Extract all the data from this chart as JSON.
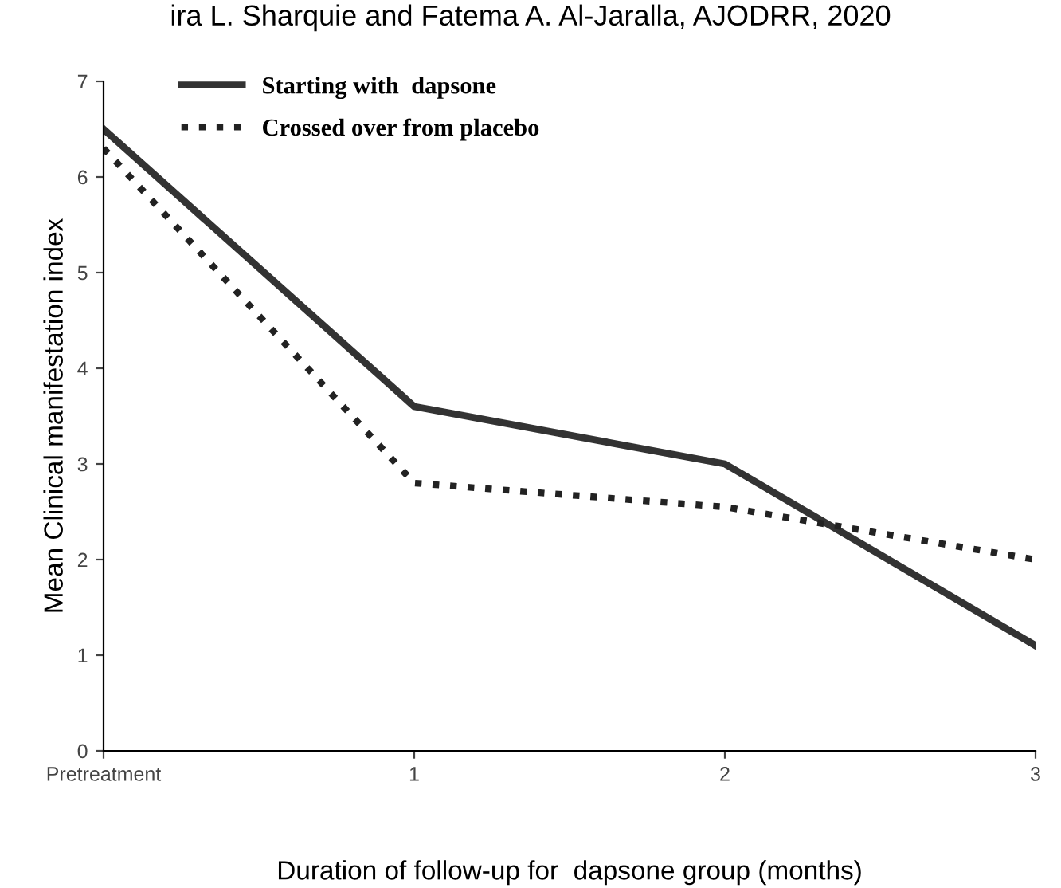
{
  "chart_data": {
    "type": "line",
    "title": "ira L. Sharquie and Fatema A. Al-Jaralla, AJODRR, 2020",
    "xlabel": "Duration of follow-up for  dapsone group (months)",
    "ylabel": "Mean Clinical manifestation index",
    "x": [
      0,
      1,
      2,
      3
    ],
    "series": [
      {
        "name": "Starting with  dapsone",
        "color": "#333333",
        "values": [
          6.5,
          3.6,
          3.0,
          1.1
        ],
        "line_style": "solid"
      },
      {
        "name": "Crossed over from placebo",
        "color": "#222222",
        "values": [
          6.3,
          2.8,
          2.55,
          2.0
        ],
        "line_style": "dotted"
      }
    ],
    "xlim": [
      0,
      3
    ],
    "xticks": [
      {
        "value": 0,
        "label": "Pretreatment"
      },
      1,
      2,
      3
    ],
    "ylim": [
      0,
      7
    ],
    "yticks": [
      0,
      1,
      2,
      3,
      4,
      5,
      6,
      7
    ],
    "grid": false,
    "legend": "top left",
    "marker": "none"
  }
}
